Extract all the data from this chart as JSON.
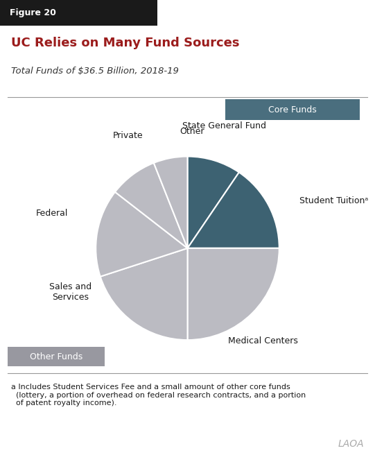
{
  "title": "UC Relies on Many Fund Sources",
  "subtitle": "Total Funds of $36.5 Billion, 2018-19",
  "figure_label": "Figure 20",
  "slices": [
    {
      "label": "State General Fund",
      "value": 9.5,
      "color": "#3d6272"
    },
    {
      "label": "Student Tuitionᵃ",
      "value": 15.5,
      "color": "#3d6272"
    },
    {
      "label": "Medical Centers",
      "value": 25.0,
      "color": "#bbbbc2"
    },
    {
      "label": "Sales and\nServices",
      "value": 20.0,
      "color": "#bbbbc2"
    },
    {
      "label": "Federal",
      "value": 15.5,
      "color": "#bbbbc2"
    },
    {
      "label": "Private",
      "value": 8.5,
      "color": "#bbbbc2"
    },
    {
      "label": "Other",
      "value": 6.0,
      "color": "#bbbbc2"
    }
  ],
  "core_funds_label": "Core Funds",
  "core_funds_color": "#4a6e7e",
  "other_funds_label": "Other Funds",
  "other_funds_color": "#9898a0",
  "footnote_superscript": "a",
  "footnote_text": " Includes Student Services Fee and a small amount of other core funds\n  (lottery, a portion of overhead on federal research contracts, and a portion\n  of patent royalty income).",
  "title_color": "#9b1c1c",
  "figure_label_bg": "#1a1a1a",
  "figure_label_color": "#ffffff",
  "wedge_edge_color": "#ffffff",
  "wedge_edge_width": 1.5,
  "laoa_text": "LAOA",
  "laoa_color": "#aaaaaa"
}
